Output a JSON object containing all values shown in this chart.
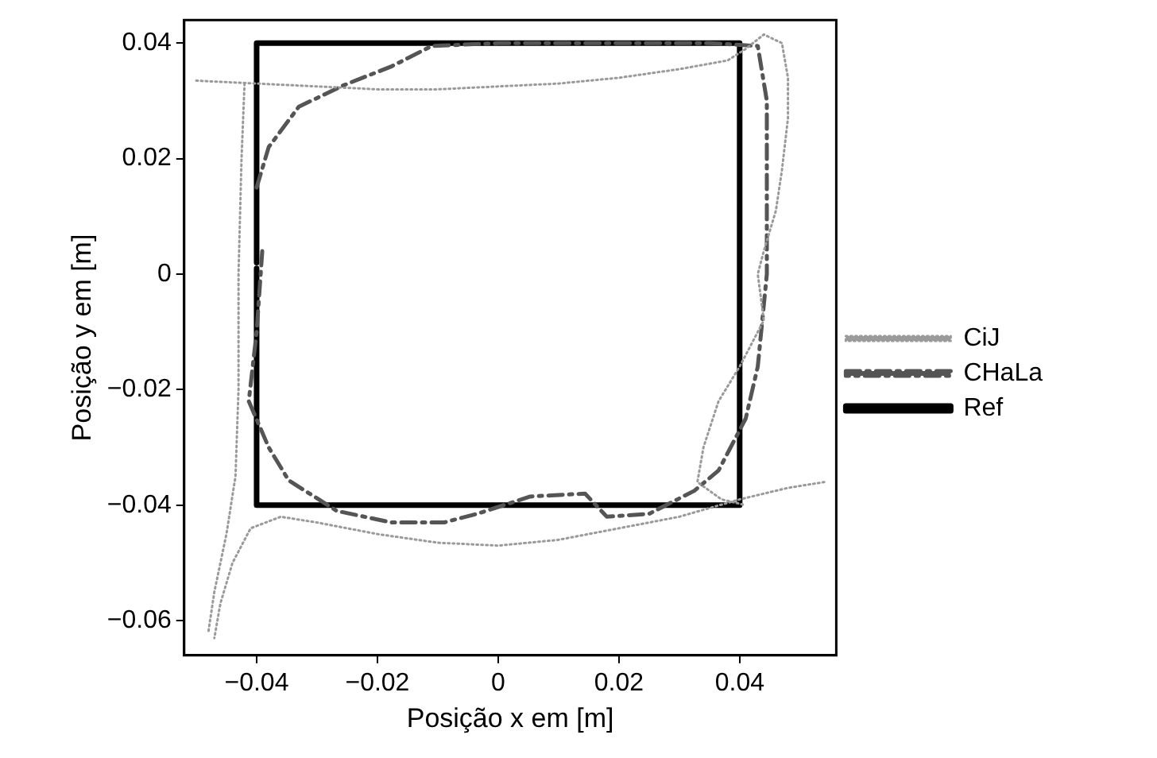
{
  "chart_data": {
    "type": "line",
    "xlabel": "Posição x em [m]",
    "ylabel": "Posição y em [m]",
    "xlim": [
      -0.052,
      0.056
    ],
    "ylim": [
      -0.066,
      0.044
    ],
    "xticks": [
      -0.04,
      -0.02,
      0,
      0.02,
      0.04
    ],
    "yticks": [
      -0.06,
      -0.04,
      -0.02,
      0,
      0.02,
      0.04
    ],
    "grid": false,
    "legend": "right",
    "marker": "none",
    "series": [
      {
        "name": "CiJ",
        "color": "#9a9a9a",
        "line_style": "dotted",
        "x": [
          -0.05,
          -0.04,
          -0.03,
          -0.02,
          -0.01,
          0,
          0.01,
          0.02,
          0.03,
          0.038,
          0.041,
          0.044,
          0.047,
          0.048,
          0.048,
          0.047,
          0.046,
          0.044,
          0.043,
          0.044,
          0.04,
          0.0365,
          0.034,
          0.033,
          0.037,
          0.041,
          null,
          0.054,
          0.048,
          0.04,
          0.03,
          0.02,
          0.01,
          0,
          -0.01,
          -0.02,
          -0.03,
          -0.036,
          -0.041,
          -0.044,
          -0.046,
          -0.047,
          null,
          -0.042,
          -0.0425,
          -0.043,
          -0.043,
          -0.0435,
          -0.045,
          -0.047,
          -0.048
        ],
        "values": [
          0.0335,
          0.033,
          0.0325,
          0.032,
          0.032,
          0.0325,
          0.033,
          0.034,
          0.0355,
          0.037,
          0.039,
          0.0415,
          0.04,
          0.034,
          0.027,
          0.018,
          0.011,
          0.004,
          0,
          -0.008,
          -0.016,
          -0.022,
          -0.03,
          -0.036,
          -0.039,
          -0.04,
          null,
          -0.036,
          -0.037,
          -0.039,
          -0.042,
          -0.044,
          -0.046,
          -0.047,
          -0.0465,
          -0.045,
          -0.043,
          -0.042,
          -0.044,
          -0.05,
          -0.057,
          -0.063,
          null,
          0.033,
          0.02,
          0,
          -0.02,
          -0.035,
          -0.045,
          -0.055,
          -0.062
        ]
      },
      {
        "name": "CHaLa",
        "color": "#555555",
        "line_style": "dashed",
        "x": [
          -0.04,
          -0.038,
          -0.033,
          -0.0256,
          -0.0176,
          -0.011,
          0,
          0.01,
          0.02,
          0.035,
          0.043,
          0.0445,
          0.0445,
          0.0445,
          0.043,
          0.041,
          0.0365,
          0.0325,
          0.025,
          0.018,
          0.0144,
          0.0053,
          -0.0035,
          -0.009,
          -0.0176,
          -0.0267,
          -0.0347,
          -0.038,
          -0.0413,
          -0.04,
          -0.039
        ],
        "values": [
          0.015,
          0.022,
          0.029,
          0.0327,
          0.036,
          0.0395,
          0.04,
          0.04,
          0.04,
          0.04,
          0.0395,
          0.03,
          0.015,
          0,
          -0.016,
          -0.025,
          -0.034,
          -0.0375,
          -0.0415,
          -0.042,
          -0.038,
          -0.0385,
          -0.0415,
          -0.043,
          -0.043,
          -0.041,
          -0.0357,
          -0.03,
          -0.022,
          -0.01,
          0.005
        ]
      },
      {
        "name": "Ref",
        "color": "#000000",
        "line_style": "solid",
        "x": [
          -0.04,
          -0.04,
          0.04,
          0.04,
          -0.04,
          -0.04
        ],
        "values": [
          0.001,
          -0.04,
          -0.04,
          0.04,
          0.04,
          0.002
        ]
      }
    ]
  }
}
